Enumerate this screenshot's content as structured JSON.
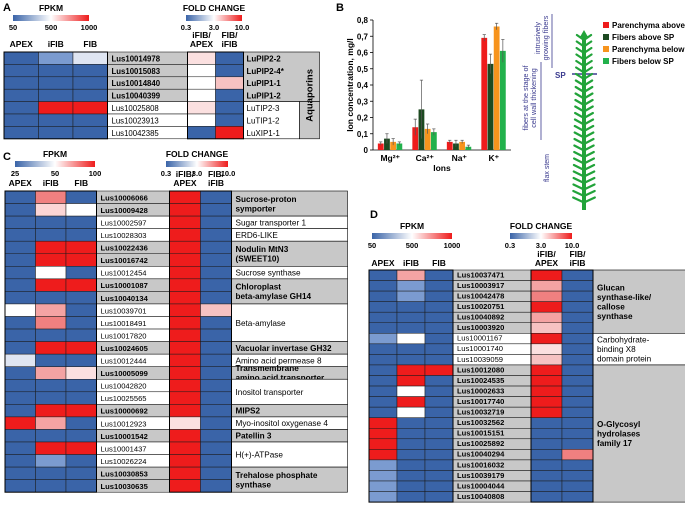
{
  "panelA": {
    "label": "A",
    "fpkm_title": "FPKM",
    "fpkm_ticks": [
      "50",
      "500",
      "1000"
    ],
    "fc_title": "FOLD CHANGE",
    "fc_ticks": [
      "0.3",
      "3.0",
      "10.0"
    ],
    "col_apex": "APEX",
    "col_ifib": "iFIB",
    "col_fib": "FIB",
    "col_fc1a": "iFIB/",
    "col_fc1b": "APEX",
    "col_fc2a": "FIB/",
    "col_fc2b": "iFIB",
    "group_label": "Aquaporins",
    "rows": [
      {
        "id": "Lus10014978",
        "name": "LuPIP2-2",
        "bold": true,
        "shade": true,
        "c": [
          "#3a64a8",
          "#7b9bd0",
          "#dfe5f2",
          "#fbe0e0",
          "#3a64a8"
        ]
      },
      {
        "id": "Lus10015083",
        "name": "LuPIP2-4*",
        "bold": true,
        "shade": true,
        "c": [
          "#3a64a8",
          "#3a64a8",
          "#3a64a8",
          "#ffffff",
          "#3a64a8"
        ]
      },
      {
        "id": "Lus10014840",
        "name": "LuPIP1-1",
        "bold": true,
        "shade": true,
        "c": [
          "#3a64a8",
          "#3a64a8",
          "#3a64a8",
          "#ffffff",
          "#f6c2c2"
        ]
      },
      {
        "id": "Lus10040399",
        "name": "LuPIP1-2",
        "bold": true,
        "shade": true,
        "c": [
          "#3a64a8",
          "#3a64a8",
          "#3a64a8",
          "#ffffff",
          "#3a64a8"
        ]
      },
      {
        "id": "Lus10025808",
        "name": "LuTIP2-3",
        "bold": false,
        "shade": false,
        "c": [
          "#3a64a8",
          "#ee1c1c",
          "#ee1c1c",
          "#fbe0e0",
          "#3a64a8"
        ]
      },
      {
        "id": "Lus10023913",
        "name": "LuTIP1-2",
        "bold": false,
        "shade": false,
        "c": [
          "#3a64a8",
          "#3a64a8",
          "#3a64a8",
          "#ffffff",
          "#3a64a8"
        ]
      },
      {
        "id": "Lus10042385",
        "name": "LuXIP1-1",
        "bold": false,
        "shade": false,
        "c": [
          "#3a64a8",
          "#3a64a8",
          "#3a64a8",
          "#3a64a8",
          "#ee1c1c"
        ]
      }
    ]
  },
  "panelB": {
    "label": "B",
    "ylabel": "Ion concentration, mg/l",
    "xlabel": "Ions",
    "fibers_stage_label1": "fibers at the stage of",
    "fibers_stage_label2": "cell wall thickening",
    "intrusive_label1": "intrusively",
    "intrusive_label2": "growing fibers",
    "sp_label": "SP",
    "flax_stem_label": "flax stem"
  },
  "chart_data": {
    "type": "bar",
    "categories": [
      "Mg²⁺",
      "Ca²⁺",
      "Na⁺",
      "K⁺"
    ],
    "ylim": [
      0,
      0.8
    ],
    "yticks": [
      "0",
      "0,1",
      "0,2",
      "0,3",
      "0,4",
      "0,5",
      "0,6",
      "0,7",
      "0,8"
    ],
    "series": [
      {
        "name": "Parenchyma above SP",
        "color": "#ee1c1c",
        "values": [
          0.04,
          0.14,
          0.05,
          0.69
        ],
        "err": [
          0.01,
          0.05,
          0.01,
          0.02
        ]
      },
      {
        "name": "Fibers above SP",
        "color": "#1d4a21",
        "values": [
          0.07,
          0.25,
          0.04,
          0.53
        ],
        "err": [
          0.03,
          0.18,
          0.02,
          0.06
        ]
      },
      {
        "name": "Parenchyma below SP",
        "color": "#f7941d",
        "values": [
          0.05,
          0.13,
          0.05,
          0.76
        ],
        "err": [
          0.02,
          0.03,
          0.01,
          0.02
        ]
      },
      {
        "name": "Fibers below SP",
        "color": "#22b14c",
        "values": [
          0.04,
          0.11,
          0.02,
          0.61
        ],
        "err": [
          0.01,
          0.02,
          0.01,
          0.07
        ]
      }
    ]
  },
  "panelC": {
    "label": "C",
    "fpkm_title": "FPKM",
    "fpkm_ticks": [
      "25",
      "50",
      "100"
    ],
    "fc_title": "FOLD CHANGE",
    "fc_ticks": [
      "0.3",
      "3.0",
      "10.0"
    ],
    "col_apex": "APEX",
    "col_ifib": "iFIB",
    "col_fib": "FIB",
    "col_fc1a": "iFIB/",
    "col_fc1b": "APEX",
    "col_fc2a": "FIB/",
    "col_fc2b": "iFIB",
    "rows": [
      {
        "id": "Lus10006066",
        "bold": true,
        "c": [
          "#3a64a8",
          "#f08080",
          "#3a64a8",
          "#ee1c1c",
          "#3a64a8"
        ]
      },
      {
        "id": "Lus10009428",
        "bold": true,
        "c": [
          "#3a64a8",
          "#fbd5d5",
          "#ffffff",
          "#ee1c1c",
          "#3a64a8"
        ]
      },
      {
        "id": "Lus10002597",
        "bold": false,
        "c": [
          "#3a64a8",
          "#3a64a8",
          "#3a64a8",
          "#ee1c1c",
          "#3a64a8"
        ]
      },
      {
        "id": "Lus10028303",
        "bold": false,
        "c": [
          "#3a64a8",
          "#3a64a8",
          "#3a64a8",
          "#ee1c1c",
          "#3a64a8"
        ]
      },
      {
        "id": "Lus10022436",
        "bold": true,
        "c": [
          "#3a64a8",
          "#ee1c1c",
          "#ee1c1c",
          "#ee1c1c",
          "#3a64a8"
        ]
      },
      {
        "id": "Lus10016742",
        "bold": true,
        "c": [
          "#3a64a8",
          "#ee1c1c",
          "#ee1c1c",
          "#ee1c1c",
          "#3a64a8"
        ]
      },
      {
        "id": "Lus10012454",
        "bold": false,
        "c": [
          "#3a64a8",
          "#ffffff",
          "#3a64a8",
          "#ee1c1c",
          "#3a64a8"
        ]
      },
      {
        "id": "Lus10001087",
        "bold": true,
        "c": [
          "#3a64a8",
          "#ee1c1c",
          "#ee1c1c",
          "#ee1c1c",
          "#3a64a8"
        ]
      },
      {
        "id": "Lus10040134",
        "bold": true,
        "c": [
          "#3a64a8",
          "#3a64a8",
          "#3a64a8",
          "#ee1c1c",
          "#3a64a8"
        ]
      },
      {
        "id": "Lus10039701",
        "bold": false,
        "c": [
          "#ffffff",
          "#f4a3a3",
          "#3a64a8",
          "#ee1c1c",
          "#f6c2c2"
        ]
      },
      {
        "id": "Lus10018491",
        "bold": false,
        "c": [
          "#3a64a8",
          "#f08080",
          "#3a64a8",
          "#ee1c1c",
          "#3a64a8"
        ]
      },
      {
        "id": "Lus10017820",
        "bold": false,
        "c": [
          "#3a64a8",
          "#3a64a8",
          "#3a64a8",
          "#ee1c1c",
          "#3a64a8"
        ]
      },
      {
        "id": "Lus10024605",
        "bold": true,
        "c": [
          "#3a64a8",
          "#ee1c1c",
          "#ee1c1c",
          "#ee1c1c",
          "#3a64a8"
        ]
      },
      {
        "id": "Lus10012444",
        "bold": false,
        "c": [
          "#dfe5f2",
          "#3a64a8",
          "#3a64a8",
          "#ee1c1c",
          "#3a64a8"
        ]
      },
      {
        "id": "Lus10005099",
        "bold": true,
        "c": [
          "#3a64a8",
          "#f4a3a3",
          "#fbe0e0",
          "#ee1c1c",
          "#3a64a8"
        ]
      },
      {
        "id": "Lus10042820",
        "bold": false,
        "c": [
          "#3a64a8",
          "#3a64a8",
          "#3a64a8",
          "#ee1c1c",
          "#3a64a8"
        ]
      },
      {
        "id": "Lus10025565",
        "bold": false,
        "c": [
          "#3a64a8",
          "#3a64a8",
          "#3a64a8",
          "#ee1c1c",
          "#3a64a8"
        ]
      },
      {
        "id": "Lus10000692",
        "bold": true,
        "c": [
          "#3a64a8",
          "#ee1c1c",
          "#ee1c1c",
          "#ee1c1c",
          "#3a64a8"
        ]
      },
      {
        "id": "Lus10012923",
        "bold": false,
        "c": [
          "#ee1c1c",
          "#f4a3a3",
          "#3a64a8",
          "#fbe0e0",
          "#3a64a8"
        ]
      },
      {
        "id": "Lus10001542",
        "bold": true,
        "c": [
          "#3a64a8",
          "#3a64a8",
          "#3a64a8",
          "#ee1c1c",
          "#3a64a8"
        ]
      },
      {
        "id": "Lus10001437",
        "bold": false,
        "c": [
          "#3a64a8",
          "#ee1c1c",
          "#ee1c1c",
          "#ee1c1c",
          "#3a64a8"
        ]
      },
      {
        "id": "Lus10026224",
        "bold": false,
        "c": [
          "#3a64a8",
          "#7b9bd0",
          "#3a64a8",
          "#ee1c1c",
          "#3a64a8"
        ]
      },
      {
        "id": "Lus10030853",
        "bold": true,
        "c": [
          "#3a64a8",
          "#3a64a8",
          "#3a64a8",
          "#ee1c1c",
          "#3a64a8"
        ]
      },
      {
        "id": "Lus10030635",
        "bold": true,
        "c": [
          "#3a64a8",
          "#3a64a8",
          "#3a64a8",
          "#ee1c1c",
          "#3a64a8"
        ]
      }
    ],
    "groups": [
      {
        "start": 0,
        "n": 2,
        "lines": [
          "Sucrose-proton",
          "symporter"
        ],
        "bold": true,
        "shade": true
      },
      {
        "start": 2,
        "n": 1,
        "lines": [
          "Sugar transporter 1"
        ],
        "bold": false,
        "shade": false
      },
      {
        "start": 3,
        "n": 1,
        "lines": [
          "ERD6-LIKE"
        ],
        "bold": false,
        "shade": false
      },
      {
        "start": 4,
        "n": 2,
        "lines": [
          "Nodulin MtN3",
          "(SWEET10)"
        ],
        "bold": true,
        "shade": true
      },
      {
        "start": 6,
        "n": 1,
        "lines": [
          "Sucrose synthase"
        ],
        "bold": false,
        "shade": false
      },
      {
        "start": 7,
        "n": 2,
        "lines": [
          "Chloroplast",
          "beta-amylase GH14"
        ],
        "bold": true,
        "shade": true
      },
      {
        "start": 9,
        "n": 3,
        "lines": [
          "Beta-amylase"
        ],
        "bold": false,
        "shade": false
      },
      {
        "start": 12,
        "n": 1,
        "lines": [
          "Vacuolar invertase GH32"
        ],
        "bold": true,
        "shade": true
      },
      {
        "start": 13,
        "n": 1,
        "lines": [
          "Amino acid permease 8"
        ],
        "bold": false,
        "shade": false
      },
      {
        "start": 14,
        "n": 1,
        "lines": [
          "Transmembrane",
          "amino acid transporter"
        ],
        "bold": true,
        "shade": true
      },
      {
        "start": 15,
        "n": 2,
        "lines": [
          "Inositol transporter"
        ],
        "bold": false,
        "shade": false
      },
      {
        "start": 17,
        "n": 1,
        "lines": [
          "MIPS2"
        ],
        "bold": true,
        "shade": true
      },
      {
        "start": 18,
        "n": 1,
        "lines": [
          "Myo-inositol oxygenase 4"
        ],
        "bold": false,
        "shade": false
      },
      {
        "start": 19,
        "n": 1,
        "lines": [
          "Patellin 3"
        ],
        "bold": true,
        "shade": true
      },
      {
        "start": 20,
        "n": 2,
        "lines": [
          "H(+)-ATPase"
        ],
        "bold": false,
        "shade": false
      },
      {
        "start": 22,
        "n": 2,
        "lines": [
          "Trehalose phosphate",
          "synthase"
        ],
        "bold": true,
        "shade": true
      }
    ]
  },
  "panelD": {
    "label": "D",
    "fpkm_title": "FPKM",
    "fpkm_ticks": [
      "50",
      "500",
      "1000"
    ],
    "fc_title": "FOLD CHANGE",
    "fc_ticks": [
      "0.3",
      "3.0",
      "10.0"
    ],
    "col_apex": "APEX",
    "col_ifib": "iFIB",
    "col_fib": "FIB",
    "col_fc1a": "iFIB/",
    "col_fc1b": "APEX",
    "col_fc2a": "FIB/",
    "col_fc2b": "iFIB",
    "rows": [
      {
        "id": "Lus10037471",
        "bold": true,
        "c": [
          "#3a64a8",
          "#f4a3a3",
          "#3a64a8",
          "#ee1c1c",
          "#3a64a8"
        ]
      },
      {
        "id": "Lus10003917",
        "bold": true,
        "c": [
          "#3a64a8",
          "#7b9bd0",
          "#3a64a8",
          "#f4a3a3",
          "#3a64a8"
        ]
      },
      {
        "id": "Lus10042478",
        "bold": true,
        "c": [
          "#3a64a8",
          "#7b9bd0",
          "#3a64a8",
          "#f08080",
          "#3a64a8"
        ]
      },
      {
        "id": "Lus10020751",
        "bold": true,
        "c": [
          "#3a64a8",
          "#3a64a8",
          "#3a64a8",
          "#ee1c1c",
          "#3a64a8"
        ]
      },
      {
        "id": "Lus10040892",
        "bold": true,
        "c": [
          "#3a64a8",
          "#3a64a8",
          "#3a64a8",
          "#f4a3a3",
          "#3a64a8"
        ]
      },
      {
        "id": "Lus10003920",
        "bold": true,
        "c": [
          "#3a64a8",
          "#3a64a8",
          "#3a64a8",
          "#f6c2c2",
          "#3a64a8"
        ]
      },
      {
        "id": "Lus10001167",
        "bold": false,
        "c": [
          "#7b9bd0",
          "#ffffff",
          "#3a64a8",
          "#ee1c1c",
          "#3a64a8"
        ]
      },
      {
        "id": "Lus10001740",
        "bold": false,
        "c": [
          "#3a64a8",
          "#3a64a8",
          "#3a64a8",
          "#fbe0e0",
          "#3a64a8"
        ]
      },
      {
        "id": "Lus10039059",
        "bold": false,
        "c": [
          "#3a64a8",
          "#3a64a8",
          "#3a64a8",
          "#f6c2c2",
          "#3a64a8"
        ]
      },
      {
        "id": "Lus10012080",
        "bold": true,
        "c": [
          "#3a64a8",
          "#ee1c1c",
          "#ee1c1c",
          "#ee1c1c",
          "#3a64a8"
        ]
      },
      {
        "id": "Lus10024535",
        "bold": true,
        "c": [
          "#3a64a8",
          "#ee1c1c",
          "#3a64a8",
          "#ee1c1c",
          "#3a64a8"
        ]
      },
      {
        "id": "Lus10002633",
        "bold": true,
        "c": [
          "#3a64a8",
          "#ffffff",
          "#3a64a8",
          "#ee1c1c",
          "#3a64a8"
        ]
      },
      {
        "id": "Lus10017740",
        "bold": true,
        "c": [
          "#3a64a8",
          "#ee1c1c",
          "#3a64a8",
          "#ee1c1c",
          "#3a64a8"
        ]
      },
      {
        "id": "Lus10032719",
        "bold": true,
        "c": [
          "#3a64a8",
          "#ffffff",
          "#3a64a8",
          "#ee1c1c",
          "#3a64a8"
        ]
      },
      {
        "id": "Lus10032562",
        "bold": true,
        "c": [
          "#ee1c1c",
          "#3a64a8",
          "#3a64a8",
          "#3a64a8",
          "#3a64a8"
        ]
      },
      {
        "id": "Lus10015151",
        "bold": true,
        "c": [
          "#ee1c1c",
          "#3a64a8",
          "#3a64a8",
          "#3a64a8",
          "#3a64a8"
        ]
      },
      {
        "id": "Lus10025892",
        "bold": true,
        "c": [
          "#ee1c1c",
          "#3a64a8",
          "#3a64a8",
          "#3a64a8",
          "#3a64a8"
        ]
      },
      {
        "id": "Lus10040294",
        "bold": true,
        "c": [
          "#ee1c1c",
          "#3a64a8",
          "#3a64a8",
          "#3a64a8",
          "#f08080"
        ]
      },
      {
        "id": "Lus10016032",
        "bold": true,
        "c": [
          "#7b9bd0",
          "#3a64a8",
          "#3a64a8",
          "#3a64a8",
          "#3a64a8"
        ]
      },
      {
        "id": "Lus10039179",
        "bold": true,
        "c": [
          "#7b9bd0",
          "#3a64a8",
          "#3a64a8",
          "#3a64a8",
          "#3a64a8"
        ]
      },
      {
        "id": "Lus10004044",
        "bold": true,
        "c": [
          "#7b9bd0",
          "#3a64a8",
          "#3a64a8",
          "#3a64a8",
          "#3a64a8"
        ]
      },
      {
        "id": "Lus10040808",
        "bold": true,
        "c": [
          "#7b9bd0",
          "#3a64a8",
          "#3a64a8",
          "#3a64a8",
          "#3a64a8"
        ]
      }
    ],
    "groups": [
      {
        "start": 0,
        "n": 6,
        "lines": [
          "Glucan",
          "synthase-like/",
          "callose",
          "synthase"
        ],
        "bold": true,
        "shade": true
      },
      {
        "start": 6,
        "n": 3,
        "lines": [
          "Carbohydrate-",
          "binding X8",
          "domain protein"
        ],
        "bold": false,
        "shade": false
      },
      {
        "start": 9,
        "n": 13,
        "lines": [
          "O-Glycosyl",
          "hydrolases",
          "family 17"
        ],
        "bold": true,
        "shade": true
      }
    ]
  },
  "colors": {
    "blue": "#3a64a8",
    "red": "#ee1c1c",
    "shade": "#c8c8c8",
    "stem": "#22a33a"
  }
}
